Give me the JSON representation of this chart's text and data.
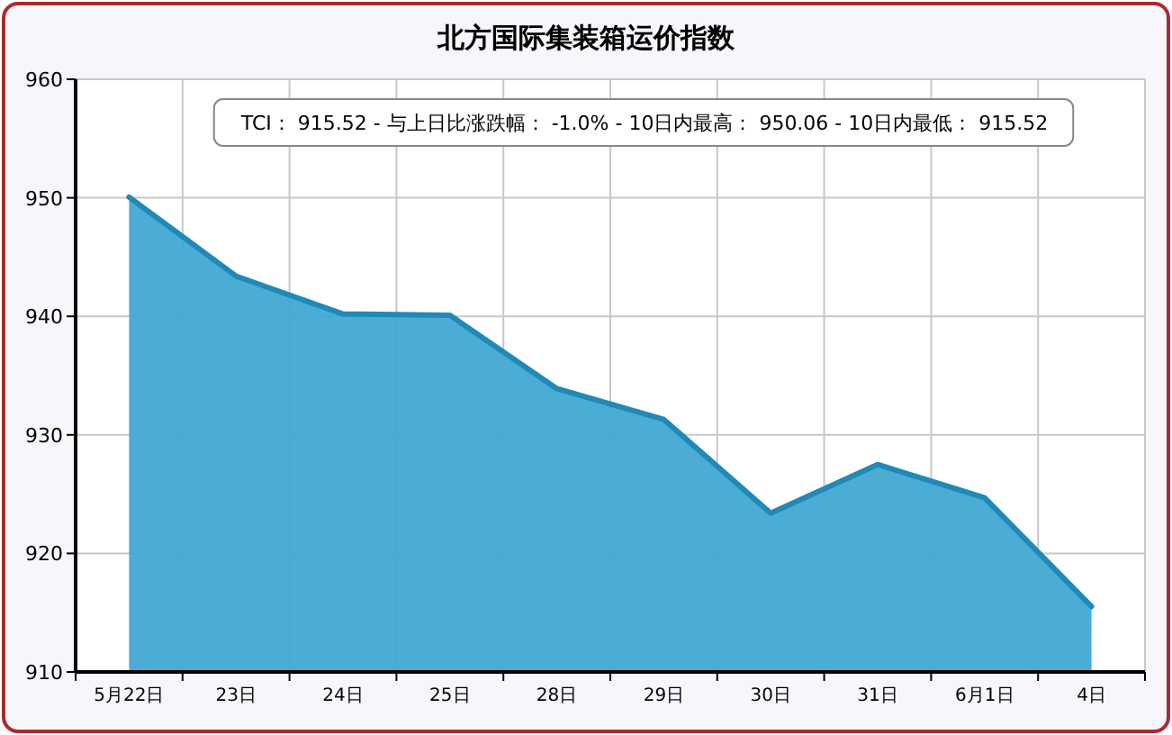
{
  "chart_data": {
    "type": "area",
    "title": "北方国际集装箱运价指数",
    "annotations": [
      "TCI：  915.52  - 与上日比涨跌幅：  -1.0%  - 10日内最高：  950.06  - 10日内最低：  915.52"
    ],
    "categories": [
      "5月22日",
      "23日",
      "24日",
      "25日",
      "28日",
      "29日",
      "30日",
      "31日",
      "6月1日",
      "4日"
    ],
    "series": [
      {
        "color": "#41a8d4",
        "values": [
          950.06,
          943.4,
          940.2,
          940.1,
          933.9,
          931.3,
          923.4,
          927.5,
          924.7,
          915.52
        ]
      }
    ],
    "ylim": [
      910,
      960
    ],
    "yticks": [
      910,
      920,
      930,
      940,
      950,
      960
    ],
    "grid": true
  }
}
